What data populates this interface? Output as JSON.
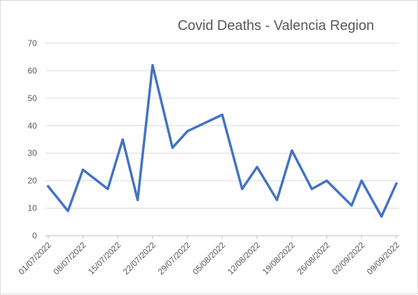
{
  "chart_data": {
    "type": "line",
    "title": "Covid Deaths - Valencia Region",
    "xlabel": "",
    "ylabel": "",
    "ylim": [
      0,
      70
    ],
    "yticks": [
      0,
      10,
      20,
      30,
      40,
      50,
      60,
      70
    ],
    "xlim": [
      "2022-07-01",
      "2022-09-09"
    ],
    "xtick_labels": [
      "01/07/2022",
      "08/07/2022",
      "15/07/2022",
      "22/07/2022",
      "29/07/2022",
      "05/08/2022",
      "12/08/2022",
      "19/08/2022",
      "26/08/2022",
      "02/09/2022",
      "09/09/2022"
    ],
    "grid": true,
    "legend": "none",
    "color": "#4472c4",
    "x": [
      "2022-07-01",
      "2022-07-05",
      "2022-07-08",
      "2022-07-13",
      "2022-07-16",
      "2022-07-19",
      "2022-07-22",
      "2022-07-26",
      "2022-07-29",
      "2022-08-05",
      "2022-08-09",
      "2022-08-12",
      "2022-08-16",
      "2022-08-19",
      "2022-08-23",
      "2022-08-26",
      "2022-08-31",
      "2022-09-02",
      "2022-09-06",
      "2022-09-09"
    ],
    "values": [
      18,
      9,
      24,
      17,
      35,
      13,
      62,
      32,
      38,
      44,
      17,
      25,
      13,
      31,
      17,
      20,
      11,
      20,
      7,
      19
    ]
  }
}
